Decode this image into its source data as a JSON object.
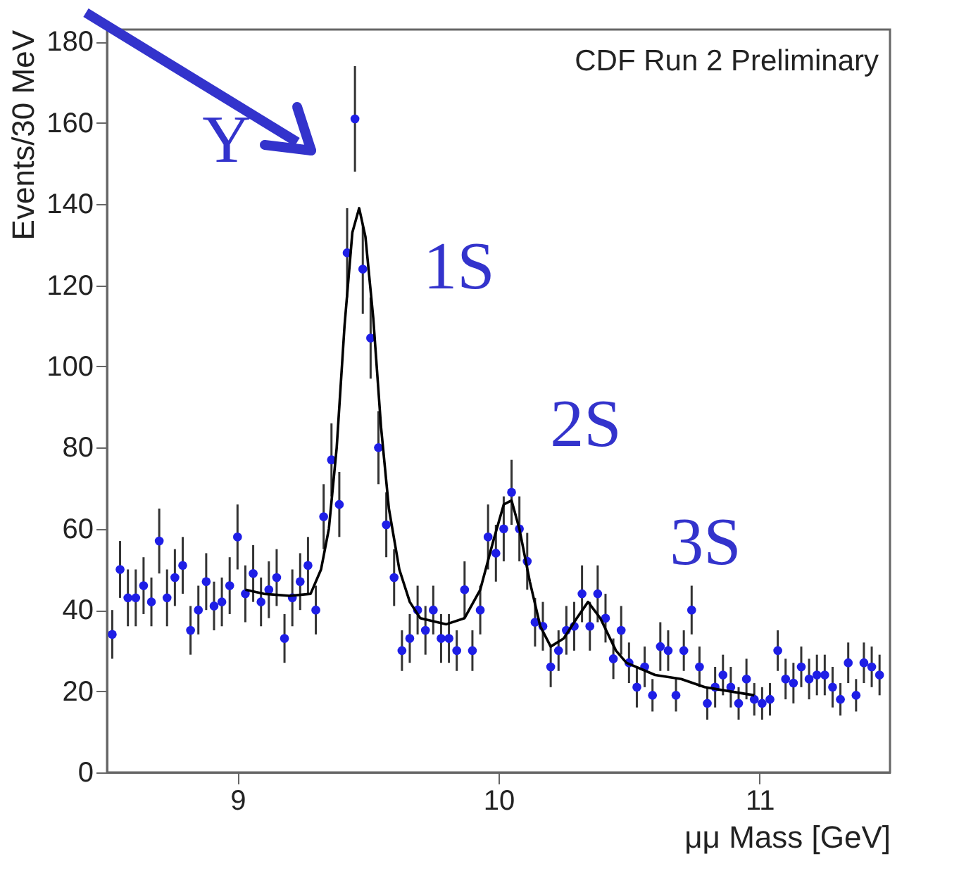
{
  "chart_data": {
    "type": "scatter",
    "xlabel": "μμ Mass [GeV]",
    "ylabel": "Events/30 MeV",
    "xlim": [
      8.5,
      11.5
    ],
    "xticks": [
      9,
      10,
      11
    ],
    "ylim": [
      0,
      183
    ],
    "yticks": [
      0,
      20,
      40,
      60,
      80,
      100,
      120,
      140,
      160,
      180
    ],
    "grid": false,
    "annotations": [
      "CDF Run 2 Preliminary",
      "Υ",
      "1S",
      "2S",
      "3S"
    ],
    "series": [
      {
        "marker": "circle",
        "color": "#1e1ee6",
        "x": [
          8.52,
          8.55,
          8.58,
          8.61,
          8.64,
          8.67,
          8.7,
          8.73,
          8.76,
          8.79,
          8.82,
          8.85,
          8.88,
          8.91,
          8.94,
          8.97,
          9.0,
          9.03,
          9.06,
          9.09,
          9.12,
          9.15,
          9.18,
          9.21,
          9.24,
          9.27,
          9.3,
          9.33,
          9.36,
          9.39,
          9.42,
          9.45,
          9.48,
          9.51,
          9.54,
          9.57,
          9.6,
          9.63,
          9.66,
          9.69,
          9.72,
          9.75,
          9.78,
          9.81,
          9.84,
          9.87,
          9.9,
          9.93,
          9.96,
          9.99,
          10.02,
          10.05,
          10.08,
          10.11,
          10.14,
          10.17,
          10.2,
          10.23,
          10.26,
          10.29,
          10.32,
          10.35,
          10.38,
          10.41,
          10.44,
          10.47,
          10.5,
          10.53,
          10.56,
          10.59,
          10.62,
          10.65,
          10.68,
          10.71,
          10.74,
          10.77,
          10.8,
          10.83,
          10.86,
          10.89,
          10.92,
          10.95,
          10.98,
          11.01,
          11.04,
          11.07,
          11.1,
          11.13,
          11.16,
          11.19,
          11.22,
          11.25,
          11.28,
          11.31,
          11.34,
          11.37,
          11.4,
          11.43,
          11.46
        ],
        "values": [
          34,
          50,
          43,
          43,
          46,
          42,
          57,
          43,
          48,
          51,
          35,
          40,
          47,
          41,
          42,
          46,
          58,
          44,
          49,
          42,
          45,
          48,
          33,
          43,
          47,
          51,
          40,
          63,
          77,
          66,
          128,
          161,
          124,
          107,
          80,
          61,
          48,
          30,
          33,
          40,
          35,
          40,
          33,
          33,
          30,
          45,
          30,
          40,
          58,
          54,
          60,
          69,
          60,
          52,
          37,
          36,
          26,
          30,
          35,
          36,
          44,
          36,
          44,
          38,
          28,
          35,
          27,
          21,
          26,
          19,
          31,
          30,
          19,
          30,
          40,
          26,
          17,
          21,
          24,
          21,
          17,
          23,
          18,
          17,
          18,
          30,
          23,
          22,
          26,
          23,
          24,
          24,
          21,
          18,
          27,
          19,
          27,
          26,
          24
        ],
        "errors": [
          6,
          7,
          7,
          7,
          7,
          6,
          8,
          7,
          7,
          7,
          6,
          6,
          7,
          6,
          6,
          7,
          8,
          7,
          7,
          6,
          7,
          7,
          6,
          7,
          7,
          7,
          6,
          8,
          9,
          8,
          11,
          13,
          11,
          10,
          9,
          8,
          7,
          5,
          6,
          6,
          6,
          6,
          6,
          6,
          5,
          7,
          5,
          6,
          8,
          7,
          8,
          8,
          8,
          7,
          6,
          6,
          5,
          5,
          6,
          6,
          7,
          6,
          7,
          6,
          5,
          6,
          5,
          5,
          5,
          4,
          6,
          5,
          4,
          5,
          6,
          5,
          4,
          5,
          5,
          5,
          4,
          5,
          4,
          4,
          4,
          5,
          5,
          5,
          5,
          5,
          5,
          5,
          5,
          4,
          5,
          4,
          5,
          5,
          5
        ]
      },
      {
        "type": "line",
        "color": "#000000",
        "x": [
          9.03,
          9.1,
          9.2,
          9.28,
          9.32,
          9.35,
          9.38,
          9.41,
          9.44,
          9.466,
          9.49,
          9.52,
          9.55,
          9.58,
          9.62,
          9.66,
          9.7,
          9.8,
          9.87,
          9.93,
          9.98,
          10.02,
          10.05,
          10.08,
          10.12,
          10.16,
          10.2,
          10.25,
          10.3,
          10.343,
          10.39,
          10.45,
          10.49,
          10.6,
          10.7,
          10.79,
          10.98
        ],
        "values": [
          45,
          44,
          43.5,
          44,
          50,
          60,
          80,
          110,
          133,
          139,
          132,
          112,
          85,
          65,
          50,
          42,
          38,
          36.5,
          38,
          45,
          57,
          66,
          67,
          60,
          47,
          36,
          31,
          33,
          38,
          42,
          38,
          30,
          27,
          24,
          23,
          21,
          19
        ]
      }
    ]
  }
}
